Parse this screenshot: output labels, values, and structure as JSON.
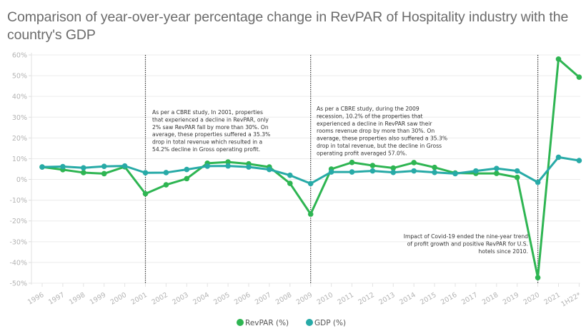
{
  "chart_data": {
    "type": "line",
    "title": "Comparison of year-over-year percentage change in RevPAR of Hospitality industry with the country's GDP",
    "xlabel": "",
    "ylabel": "",
    "categories": [
      "1996",
      "1997",
      "1998",
      "1999",
      "2000",
      "2001",
      "2002",
      "2003",
      "2004",
      "2005",
      "2006",
      "2007",
      "2008",
      "2009",
      "2010",
      "2011",
      "2012",
      "2013",
      "2014",
      "2015",
      "2016",
      "2017",
      "2018",
      "2019",
      "2020",
      "2021",
      "1H22*"
    ],
    "series": [
      {
        "name": "RevPAR (%)",
        "color": "#2eb552",
        "values": [
          6.0,
          4.7,
          3.3,
          2.8,
          6.1,
          -6.9,
          -2.6,
          0.4,
          7.8,
          8.4,
          7.5,
          6.0,
          -1.9,
          -16.7,
          5.0,
          8.2,
          6.7,
          5.5,
          8.1,
          5.8,
          3.1,
          2.9,
          2.9,
          1.0,
          -47.3,
          58.0,
          49.3
        ]
      },
      {
        "name": "GDP (%)",
        "color": "#27aaa7",
        "values": [
          6.0,
          6.2,
          5.6,
          6.3,
          6.5,
          3.2,
          3.3,
          4.8,
          6.4,
          6.5,
          6.0,
          4.8,
          2.0,
          -2.0,
          3.6,
          3.6,
          4.1,
          3.4,
          4.1,
          3.4,
          2.8,
          4.1,
          5.3,
          4.1,
          -1.4,
          10.7,
          9.1
        ]
      }
    ],
    "ylim": [
      -50,
      60
    ],
    "yticks": [
      60,
      50,
      40,
      30,
      20,
      10,
      0,
      -10,
      -20,
      -30,
      -40,
      -50
    ],
    "ytick_labels": [
      "60%",
      "50%",
      "40%",
      "30%",
      "20%",
      "10%",
      "0%",
      "-10%",
      "-20%",
      "-30%",
      "-40%",
      "-50%"
    ],
    "grid": true,
    "legend": "bottom-center",
    "reference_lines": [
      {
        "category": "2001",
        "style": "dotted"
      },
      {
        "category": "2009",
        "style": "dotted"
      },
      {
        "category": "2020",
        "style": "dotted"
      }
    ],
    "annotations": [
      {
        "anchor": "2001",
        "lines": [
          "As per a CBRE study, In 2001, properties",
          "that experienced a decline in RevPAR, only",
          "2% saw RevPAR fall by more than 30%. On",
          "average, these properties suffered a 35.3%",
          "drop in total revenue which resulted in a",
          "54.2% decline in Gross operating profit."
        ]
      },
      {
        "anchor": "2009",
        "lines": [
          "As per a CBRE study, during the 2009",
          "recession, 10.2% of the properties that",
          "experienced a decline in RevPAR saw their",
          "rooms revenue drop by more than 30%. On",
          "average, these properties also suffered a 35.3%",
          "drop in total revenue, but the decline in Gross",
          "operating profit averaged 57.0%."
        ]
      },
      {
        "anchor": "2020",
        "lines": [
          "Impact of Covid-19 ended the nine-year trend",
          "of profit growth and positive RevPAR for U.S.",
          "hotels since 2010."
        ]
      }
    ]
  }
}
